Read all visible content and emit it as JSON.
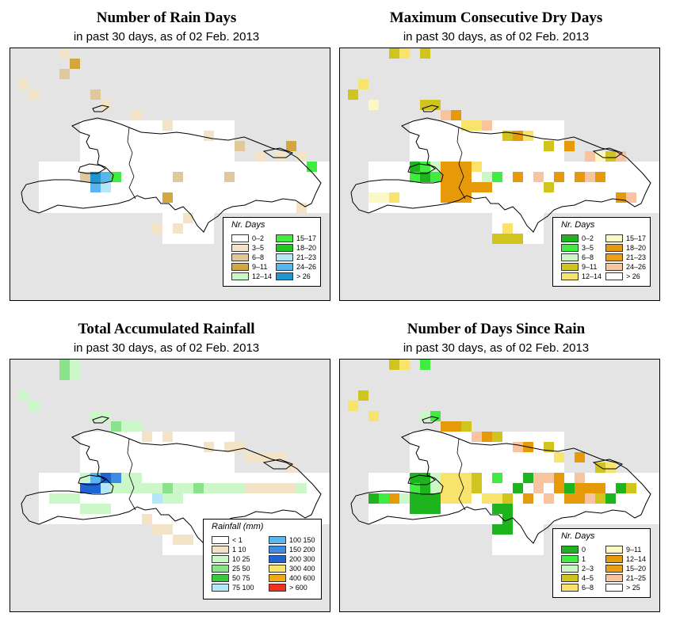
{
  "panels": [
    {
      "title": "Number of Rain Days",
      "subtitle": "in past 30 days, as of  02 Feb. 2013",
      "legend_title": "Nr. Days",
      "legend_items": [
        {
          "label": "0–2",
          "color": "#ffffff"
        },
        {
          "label": "3–5",
          "color": "#f3e4c8"
        },
        {
          "label": "6–8",
          "color": "#e1c89c"
        },
        {
          "label": "9–11",
          "color": "#d2a83e"
        },
        {
          "label": "12–14",
          "color": "#ccf7c8"
        },
        {
          "label": "15–17",
          "color": "#40ec40"
        },
        {
          "label": "18–20",
          "color": "#1ec81e"
        },
        {
          "label": "21–23",
          "color": "#b4e8f8"
        },
        {
          "label": "24–26",
          "color": "#5ab4ee"
        },
        {
          "label": "> 26",
          "color": "#1e96d2"
        }
      ]
    },
    {
      "title": "Maximum Consecutive Dry Days",
      "subtitle": "in past 30 days, as of  02 Feb. 2013",
      "legend_title": "Nr. Days",
      "legend_items": [
        {
          "label": "0–2",
          "color": "#1eb41e"
        },
        {
          "label": "3–5",
          "color": "#40ec40"
        },
        {
          "label": "6–8",
          "color": "#ccf7c8"
        },
        {
          "label": "9–11",
          "color": "#d2c41e"
        },
        {
          "label": "12–14",
          "color": "#f8e46c"
        },
        {
          "label": "15–17",
          "color": "#fcf8c4"
        },
        {
          "label": "18–20",
          "color": "#e69a0a"
        },
        {
          "label": "21–23",
          "color": "#ec9e14"
        },
        {
          "label": "24–26",
          "color": "#f8c4a0"
        },
        {
          "label": "> 26",
          "color": "#ffffff"
        }
      ]
    },
    {
      "title": "Total Accumulated Rainfall",
      "subtitle": "in past 30 days, as of  02 Feb. 2013",
      "legend_title": "Rainfall (mm)",
      "legend_items": [
        {
          "label": "< 1",
          "color": "#ffffff"
        },
        {
          "label": "1    10",
          "color": "#f3e4c8"
        },
        {
          "label": "10    25",
          "color": "#ccf7c8"
        },
        {
          "label": "25    50",
          "color": "#8ae28a"
        },
        {
          "label": "50    75",
          "color": "#3cc83c"
        },
        {
          "label": "75    100",
          "color": "#b4e8f8"
        },
        {
          "label": "100    150",
          "color": "#5ab4ee"
        },
        {
          "label": "150    200",
          "color": "#3c8ce6"
        },
        {
          "label": "200    300",
          "color": "#1e64d2"
        },
        {
          "label": "300    400",
          "color": "#f8e46c"
        },
        {
          "label": "400    600",
          "color": "#f0a814"
        },
        {
          "label": "> 600",
          "color": "#f0321e"
        }
      ]
    },
    {
      "title": "Number of Days Since Rain",
      "subtitle": "in past 30 days, as of  02 Feb. 2013",
      "legend_title": "Nr. Days",
      "legend_items": [
        {
          "label": "0",
          "color": "#1eb41e"
        },
        {
          "label": "1",
          "color": "#40ec40"
        },
        {
          "label": "2–3",
          "color": "#ccf7c8"
        },
        {
          "label": "4–5",
          "color": "#d2c41e"
        },
        {
          "label": "6–8",
          "color": "#f8e46c"
        },
        {
          "label": "9–11",
          "color": "#fcf8c4"
        },
        {
          "label": "12–14",
          "color": "#e69a0a"
        },
        {
          "label": "15–20",
          "color": "#ec9e14"
        },
        {
          "label": "21–25",
          "color": "#f8c4a0"
        },
        {
          "label": "> 25",
          "color": "#ffffff"
        }
      ]
    }
  ]
}
